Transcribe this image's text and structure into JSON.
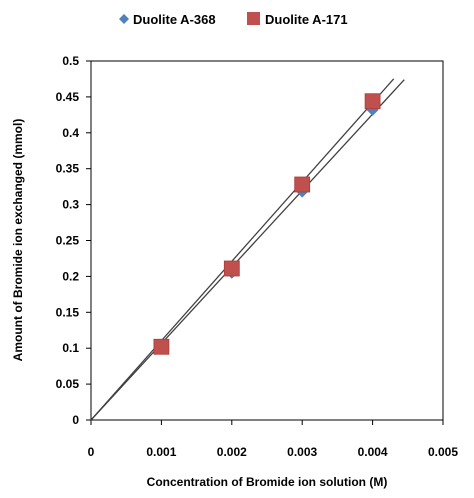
{
  "chart_data": {
    "type": "scatter",
    "xlabel": "Concentration of Bromide ion solution (M)",
    "ylabel": "Amount of Bromide ion exchanged (mmol)",
    "xlim": [
      0,
      0.005
    ],
    "ylim": [
      0,
      0.5
    ],
    "x_ticks": [
      "0",
      "0.001",
      "0.002",
      "0.003",
      "0.004",
      "0.005"
    ],
    "y_ticks": [
      "0",
      "0.05",
      "0.1",
      "0.15",
      "0.2",
      "0.25",
      "0.3",
      "0.35",
      "0.4",
      "0.45",
      "0.5"
    ],
    "legend_position": "top",
    "grid": false,
    "series": [
      {
        "name": "Duolite A-368",
        "marker": "diamond",
        "color": "#4f81bd",
        "x": [
          0.001,
          0.002,
          0.003,
          0.004
        ],
        "y": [
          0.101,
          0.205,
          0.318,
          0.432
        ],
        "trendline": {
          "slope": 106.5,
          "x_end": 0.00445
        }
      },
      {
        "name": "Duolite A-171",
        "marker": "square",
        "color": "#c0504d",
        "x": [
          0.001,
          0.002,
          0.003,
          0.004
        ],
        "y": [
          0.102,
          0.211,
          0.328,
          0.444
        ],
        "trendline": {
          "slope": 110.5,
          "x_end": 0.0043
        }
      }
    ]
  }
}
